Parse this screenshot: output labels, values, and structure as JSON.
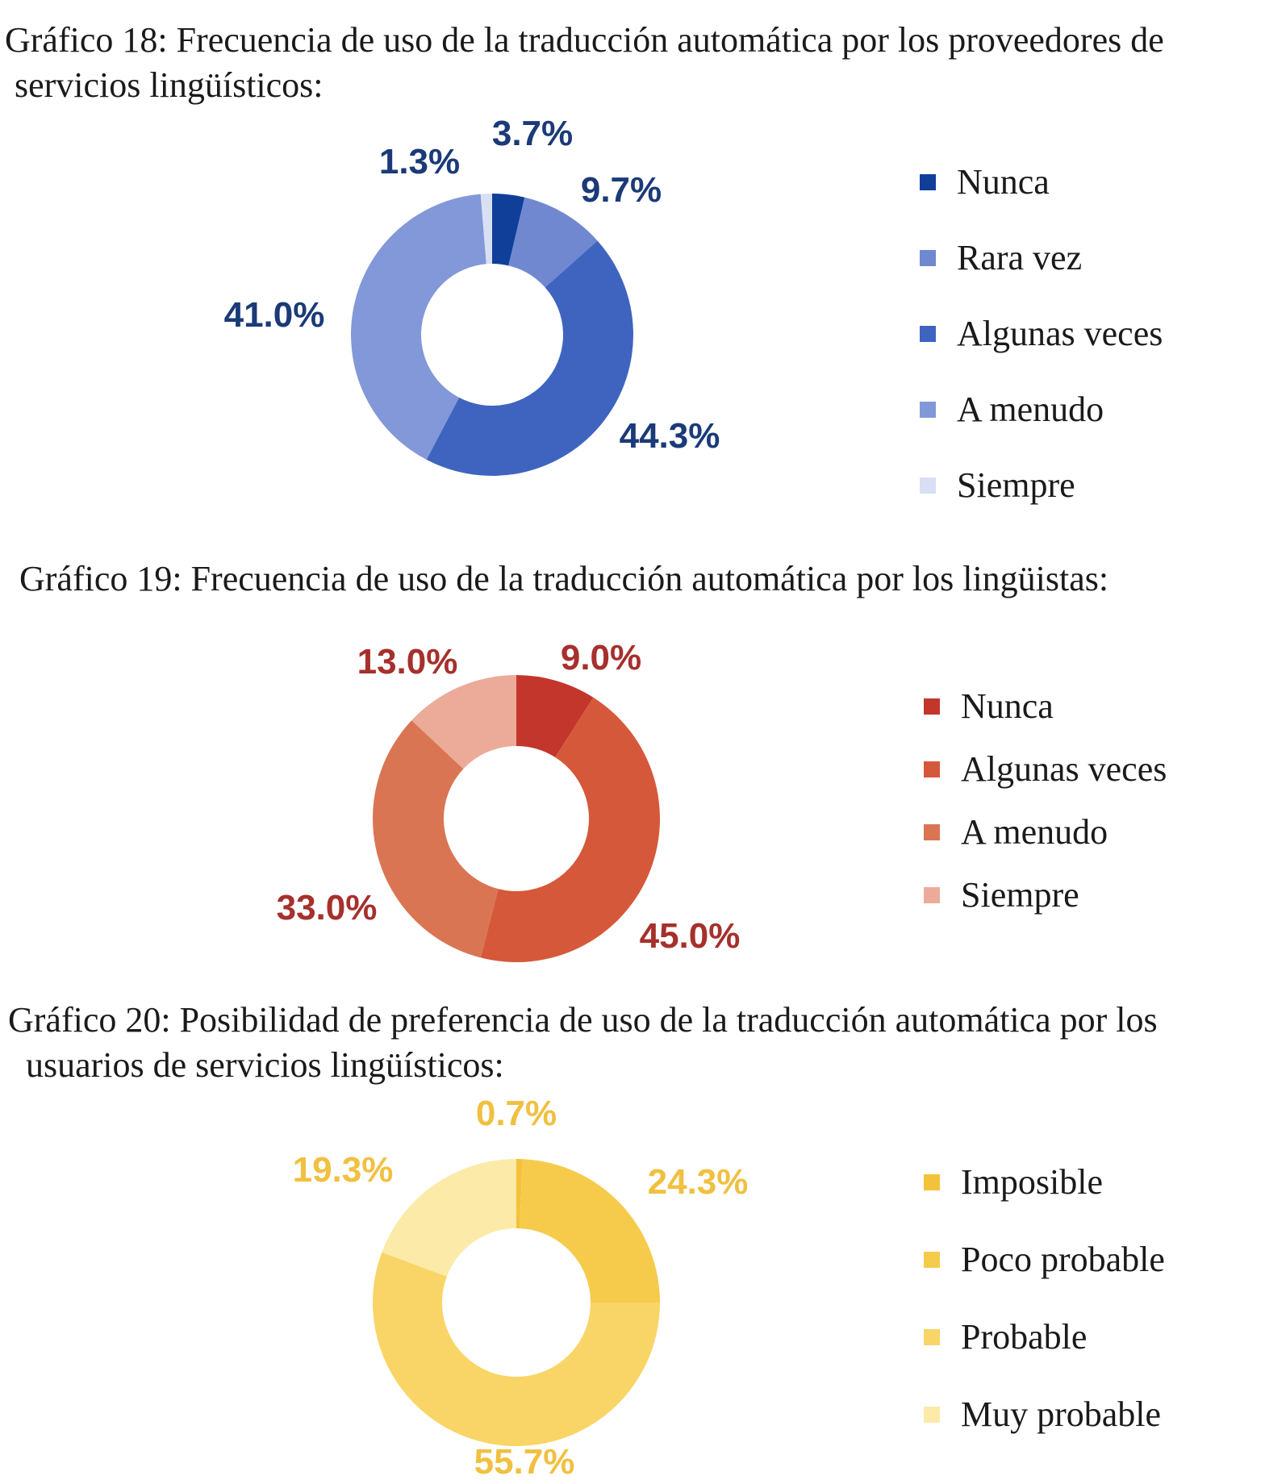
{
  "chart_data": [
    {
      "type": "pie",
      "title": "Gráfico 18: Frecuencia de uso de la traducción automática por los proveedores de servicios lingüísticos:",
      "title_line1": "Gráfico 18: Frecuencia de uso de la traducción automática por los proveedores de",
      "title_line2": "servicios lingüísticos:",
      "categories": [
        "Nunca",
        "Rara vez",
        "Algunas veces",
        "A menudo",
        "Siempre"
      ],
      "values": [
        3.7,
        9.7,
        44.3,
        41.0,
        1.3
      ],
      "labels": [
        "3.7%",
        "9.7%",
        "44.3%",
        "41.0%",
        "1.3%"
      ],
      "colors": [
        "#103f9a",
        "#7088d0",
        "#3f64c0",
        "#8398d8",
        "#d9e0f4"
      ],
      "label_color": "#1b3a78",
      "hole": "donut",
      "legend": "right"
    },
    {
      "type": "pie",
      "title": "Gráfico 19: Frecuencia de uso de la traducción automática por los lingüistas:",
      "title_line1": "Gráfico 19: Frecuencia de uso de la traducción automática por los lingüistas:",
      "categories": [
        "Nunca",
        "Algunas veces",
        "A menudo",
        "Siempre"
      ],
      "values": [
        9.0,
        45.0,
        33.0,
        13.0
      ],
      "labels": [
        "9.0%",
        "45.0%",
        "33.0%",
        "13.0%"
      ],
      "colors": [
        "#c3362c",
        "#d6583a",
        "#da7554",
        "#ebab98"
      ],
      "label_color": "#a6302c",
      "hole": "donut",
      "legend": "right"
    },
    {
      "type": "pie",
      "title": "Gráfico 20: Posibilidad de preferencia de uso de la traducción automática por los usuarios de servicios lingüísticos:",
      "title_line1": "Gráfico 20: Posibilidad de preferencia de uso de la traducción automática por los",
      "title_line2": "usuarios de servicios lingüísticos:",
      "categories": [
        "Imposible",
        "Poco probable",
        "Probable",
        "Muy probable"
      ],
      "values": [
        0.7,
        24.3,
        55.7,
        19.3
      ],
      "labels": [
        "0.7%",
        "24.3%",
        "55.7%",
        "19.3%"
      ],
      "colors": [
        "#f4c23a",
        "#f6cb4c",
        "#f8d566",
        "#fbeaa8"
      ],
      "label_color": "#f0c040",
      "hole": "donut",
      "legend": "right"
    }
  ]
}
